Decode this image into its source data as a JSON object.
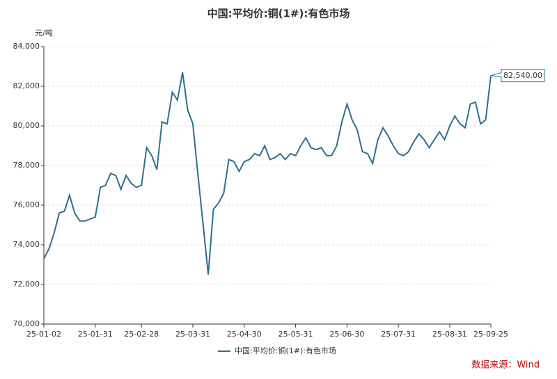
{
  "chart_data": {
    "type": "line",
    "title": "中国:平均价:铜(1#):有色市场",
    "y_axis_label": "元/吨",
    "source": "数据来源：Wind",
    "categories": [
      "25-01-02",
      null,
      null,
      null,
      null,
      null,
      null,
      null,
      null,
      null,
      "25-01-31",
      null,
      null,
      null,
      null,
      null,
      null,
      null,
      null,
      "25-02-28",
      null,
      null,
      null,
      null,
      null,
      null,
      null,
      null,
      null,
      "25-03-31",
      null,
      null,
      null,
      null,
      null,
      null,
      null,
      null,
      null,
      "25-04-30",
      null,
      null,
      null,
      null,
      null,
      null,
      null,
      null,
      null,
      "25-05-31",
      null,
      null,
      null,
      null,
      null,
      null,
      null,
      null,
      null,
      "25-06-30",
      null,
      null,
      null,
      null,
      null,
      null,
      null,
      null,
      null,
      "25-07-31",
      null,
      null,
      null,
      null,
      null,
      null,
      null,
      null,
      null,
      "25-08-31",
      null,
      null,
      null,
      null,
      null,
      null,
      null,
      "25-09-25"
    ],
    "series": [
      {
        "name": "中国:平均价:铜(1#):有色市场",
        "color": "#2e6f8e",
        "values": [
          73300,
          73800,
          74600,
          75600,
          75700,
          76500,
          75600,
          75200,
          75200,
          75300,
          75400,
          76900,
          77000,
          77600,
          77500,
          76800,
          77500,
          77100,
          76900,
          77000,
          78900,
          78500,
          77800,
          80200,
          80100,
          81700,
          81300,
          82700,
          80800,
          80100,
          77500,
          75000,
          72500,
          75800,
          76100,
          76600,
          78300,
          78200,
          77700,
          78200,
          78300,
          78600,
          78500,
          79000,
          78300,
          78400,
          78600,
          78300,
          78600,
          78500,
          79000,
          79400,
          78900,
          78800,
          78900,
          78500,
          78500,
          79000,
          80200,
          81100,
          80300,
          79800,
          78700,
          78600,
          78100,
          79300,
          79900,
          79500,
          79000,
          78600,
          78500,
          78700,
          79200,
          79600,
          79300,
          78900,
          79300,
          79700,
          79300,
          80000,
          80500,
          80100,
          79900,
          81100,
          81200,
          80100,
          80300,
          82540
        ],
        "value_labels": [
          null,
          null,
          null,
          null,
          null,
          null,
          null,
          null,
          null,
          null,
          null,
          null,
          null,
          null,
          null,
          null,
          null,
          null,
          null,
          null,
          null,
          null,
          null,
          null,
          null,
          null,
          null,
          null,
          null,
          null,
          null,
          null,
          null,
          null,
          null,
          null,
          null,
          null,
          null,
          null,
          null,
          null,
          null,
          null,
          null,
          null,
          null,
          null,
          null,
          null,
          null,
          null,
          null,
          null,
          null,
          null,
          null,
          null,
          null,
          null,
          null,
          null,
          null,
          null,
          null,
          null,
          null,
          null,
          null,
          null,
          null,
          null,
          null,
          null,
          null,
          null,
          null,
          null,
          null,
          null,
          null,
          null,
          null,
          null,
          null,
          null,
          null,
          "82,540.00"
        ]
      }
    ],
    "ylim": [
      70000,
      84000
    ],
    "yticks": [
      {
        "value": 70000,
        "label": "70,000"
      },
      {
        "value": 72000,
        "label": "72,000"
      },
      {
        "value": 74000,
        "label": "74,000"
      },
      {
        "value": 76000,
        "label": "76,000"
      },
      {
        "value": 78000,
        "label": "78,000"
      },
      {
        "value": 80000,
        "label": "80,000"
      },
      {
        "value": 82000,
        "label": "82,000"
      },
      {
        "value": 84000,
        "label": "84,000"
      }
    ],
    "grid": true
  }
}
